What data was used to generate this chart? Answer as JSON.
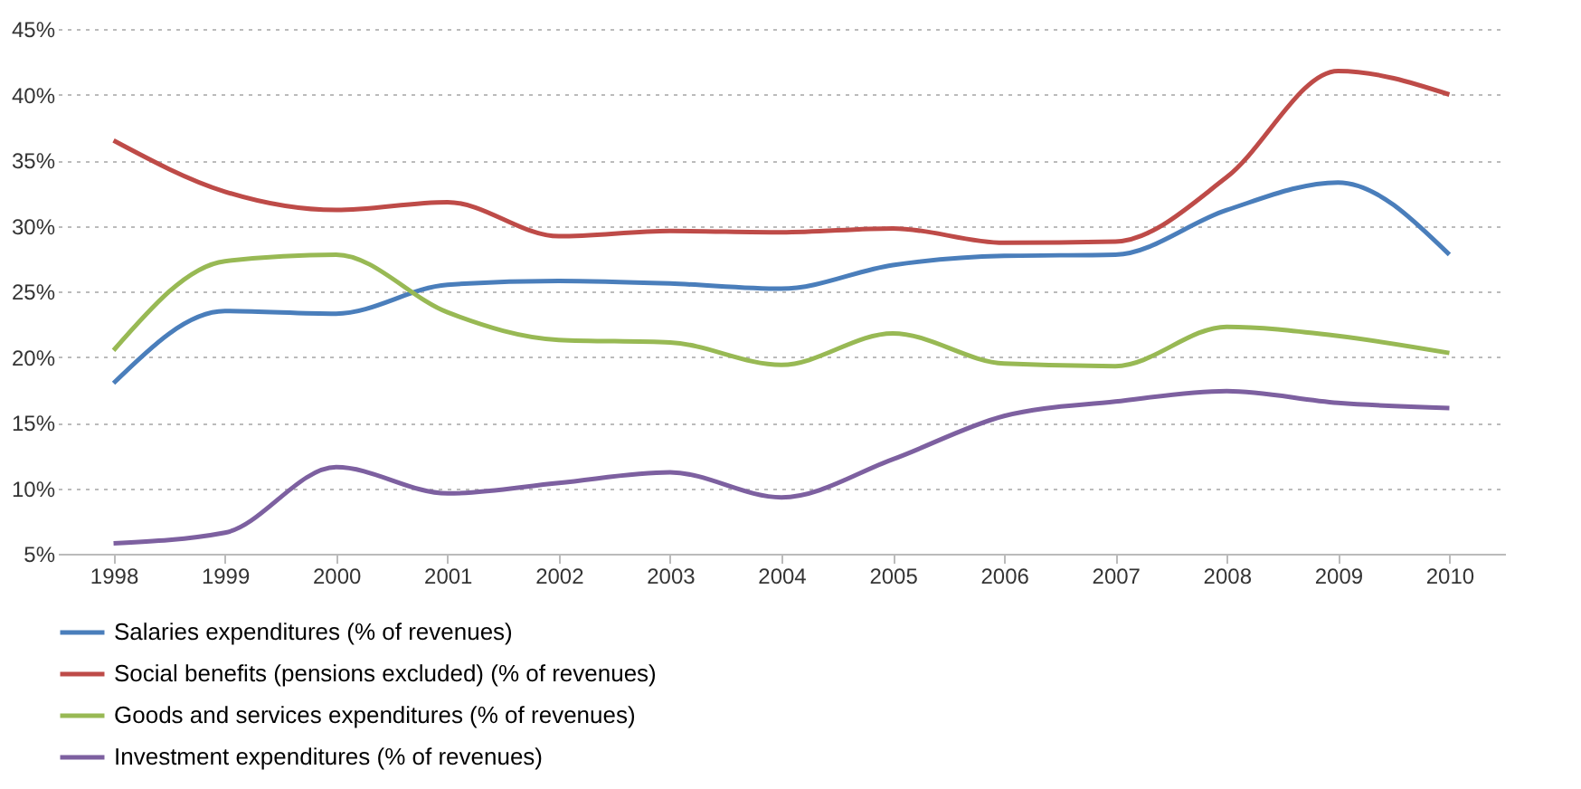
{
  "chart_data": {
    "type": "line",
    "categories": [
      "1998",
      "1999",
      "2000",
      "2001",
      "2002",
      "2003",
      "2004",
      "2005",
      "2006",
      "2007",
      "2008",
      "2009",
      "2010"
    ],
    "series": [
      {
        "name": "Salaries expenditures (% of revenues)",
        "color": "#4a7ebb",
        "values": [
          18,
          23.5,
          23.3,
          25.5,
          25.8,
          25.6,
          25.2,
          27,
          27.7,
          27.8,
          31.2,
          33.3,
          27.8
        ]
      },
      {
        "name": "Social benefits (pensions excluded) (% of revenues)",
        "color": "#be4b48",
        "values": [
          36.5,
          32.6,
          31.2,
          31.8,
          29.2,
          29.6,
          29.5,
          29.8,
          28.7,
          28.8,
          33.7,
          41.8,
          40
        ]
      },
      {
        "name": "Goods and services expenditures (% of revenues)",
        "color": "#98b954",
        "values": [
          20.5,
          27.3,
          27.8,
          23.4,
          21.3,
          21.1,
          19.4,
          21.8,
          19.5,
          19.3,
          22.3,
          21.6,
          20.3
        ]
      },
      {
        "name": "Investment expenditures (% of revenues)",
        "color": "#7d60a0",
        "values": [
          5.8,
          6.6,
          11.6,
          9.6,
          10.4,
          11.2,
          9.3,
          12.2,
          15.5,
          16.6,
          17.4,
          16.5,
          16.1
        ]
      }
    ],
    "ylim": [
      5,
      45
    ],
    "yticks": [
      {
        "value": 5,
        "label": "5%"
      },
      {
        "value": 10,
        "label": "10%"
      },
      {
        "value": 15,
        "label": "15%"
      },
      {
        "value": 20,
        "label": "20%"
      },
      {
        "value": 25,
        "label": "25%"
      },
      {
        "value": 30,
        "label": "30%"
      },
      {
        "value": 35,
        "label": "35%"
      },
      {
        "value": 40,
        "label": "40%"
      },
      {
        "value": 45,
        "label": "45%"
      }
    ],
    "grid": "y",
    "legend": "bottom",
    "marker": "none",
    "line_style": "solid"
  }
}
